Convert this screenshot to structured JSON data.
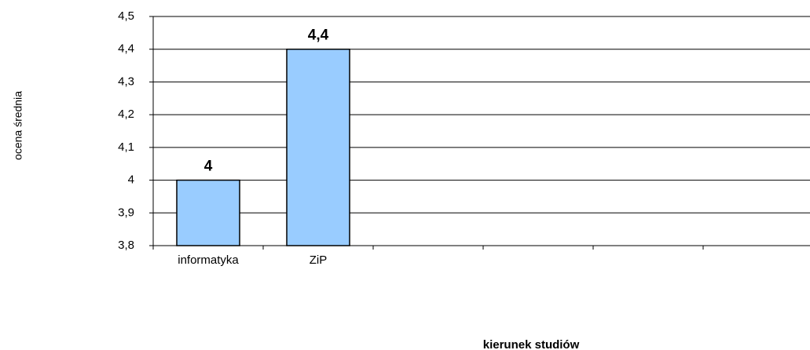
{
  "chart_data": {
    "type": "bar",
    "categories": [
      "informatyka",
      "ZiP",
      null,
      null,
      null,
      null
    ],
    "values": [
      4,
      4.4,
      null,
      null,
      null,
      null
    ],
    "value_labels": [
      "4",
      "4,4",
      null,
      null,
      null,
      null
    ],
    "color": "#99ccff",
    "ylim": [
      3.8,
      4.5
    ],
    "yticks": [
      {
        "value": 3.8,
        "label": "3,8"
      },
      {
        "value": 3.9,
        "label": "3,9"
      },
      4,
      {
        "value": 4.1,
        "label": "4,1"
      },
      {
        "value": 4.2,
        "label": "4,2"
      },
      {
        "value": 4.3,
        "label": "4,3"
      },
      {
        "value": 4.4,
        "label": "4,4"
      },
      {
        "value": 4.5,
        "label": "4,5"
      }
    ],
    "grid": true,
    "y_label": "ocena średnia",
    "x_label": "kierunek studiów"
  }
}
